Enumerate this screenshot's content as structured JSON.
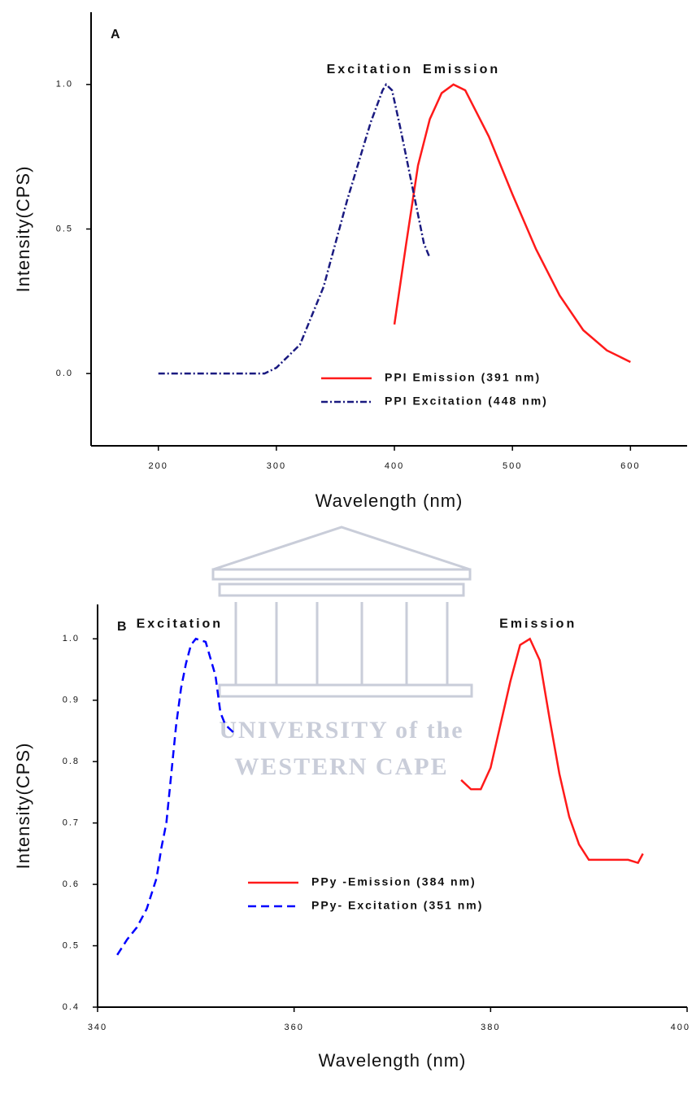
{
  "chart_data": [
    {
      "type": "line",
      "panel_label": "A",
      "x_label": "Wavelength (nm)",
      "y_label": "Intensity(CPS)",
      "xlim": [
        143,
        648
      ],
      "ylim": [
        -0.25,
        1.25
      ],
      "xticks": [
        200,
        300,
        400,
        500,
        600
      ],
      "yticks": [
        {
          "value": 0,
          "label": "0.0"
        },
        0.5,
        {
          "value": 1,
          "label": "1.0"
        }
      ],
      "legend": "lower right",
      "series": [
        {
          "name": "PPI Emission (391 nm)",
          "annotation": "Emission",
          "color": "#ff1a1a",
          "dash": "solid",
          "x": [
            400,
            410,
            420,
            430,
            440,
            450,
            460,
            480,
            500,
            520,
            540,
            560,
            580,
            600
          ],
          "values": [
            0.17,
            0.45,
            0.72,
            0.88,
            0.97,
            1.0,
            0.98,
            0.82,
            0.62,
            0.43,
            0.27,
            0.15,
            0.08,
            0.04
          ]
        },
        {
          "name": "PPI Excitation (448 nm)",
          "annotation": "Excitation",
          "color": "#1a1a80",
          "dash": "dashdot",
          "x": [
            200,
            290,
            300,
            320,
            340,
            360,
            380,
            390,
            393,
            398,
            405,
            415,
            425,
            430
          ],
          "values": [
            0,
            0,
            0.02,
            0.1,
            0.3,
            0.6,
            0.87,
            0.98,
            1.0,
            0.98,
            0.85,
            0.65,
            0.45,
            0.4
          ]
        }
      ]
    },
    {
      "type": "line",
      "panel_label": "B",
      "x_label": "Wavelength (nm)",
      "y_label": "Intensity(CPS)",
      "xlim": [
        340,
        400
      ],
      "ylim": [
        0.4,
        1.056
      ],
      "xticks": [
        340,
        360,
        380,
        400
      ],
      "yticks": [
        0.4,
        0.5,
        0.6,
        0.7,
        0.8,
        0.9,
        {
          "value": 1,
          "label": "1.0"
        }
      ],
      "legend": "lower center",
      "series": [
        {
          "name": "PPy -Emission (384 nm)",
          "annotation": "Emission",
          "color": "#ff1a1a",
          "dash": "solid",
          "x": [
            377,
            378,
            379,
            380,
            381,
            382,
            383,
            384,
            385,
            386,
            387,
            388,
            389,
            390,
            392,
            394,
            395,
            395.5
          ],
          "values": [
            0.77,
            0.755,
            0.755,
            0.79,
            0.86,
            0.93,
            0.99,
            1.0,
            0.965,
            0.87,
            0.78,
            0.71,
            0.665,
            0.64,
            0.64,
            0.64,
            0.635,
            0.65
          ]
        },
        {
          "name": "PPy- Excitation (351 nm)",
          "annotation": "Excitation",
          "color": "#0000ff",
          "dash": "dashed",
          "x": [
            342,
            343,
            344,
            345,
            346,
            346.5,
            347,
            347.5,
            348,
            348.5,
            349,
            349.5,
            350,
            351,
            352,
            352.5,
            353,
            354
          ],
          "values": [
            0.485,
            0.51,
            0.53,
            0.56,
            0.61,
            0.66,
            0.7,
            0.78,
            0.86,
            0.92,
            0.96,
            0.99,
            1.0,
            0.995,
            0.94,
            0.88,
            0.86,
            0.845
          ]
        }
      ]
    }
  ],
  "watermark": {
    "line1": "UNIVERSITY of the",
    "line2": "WESTERN CAPE"
  }
}
